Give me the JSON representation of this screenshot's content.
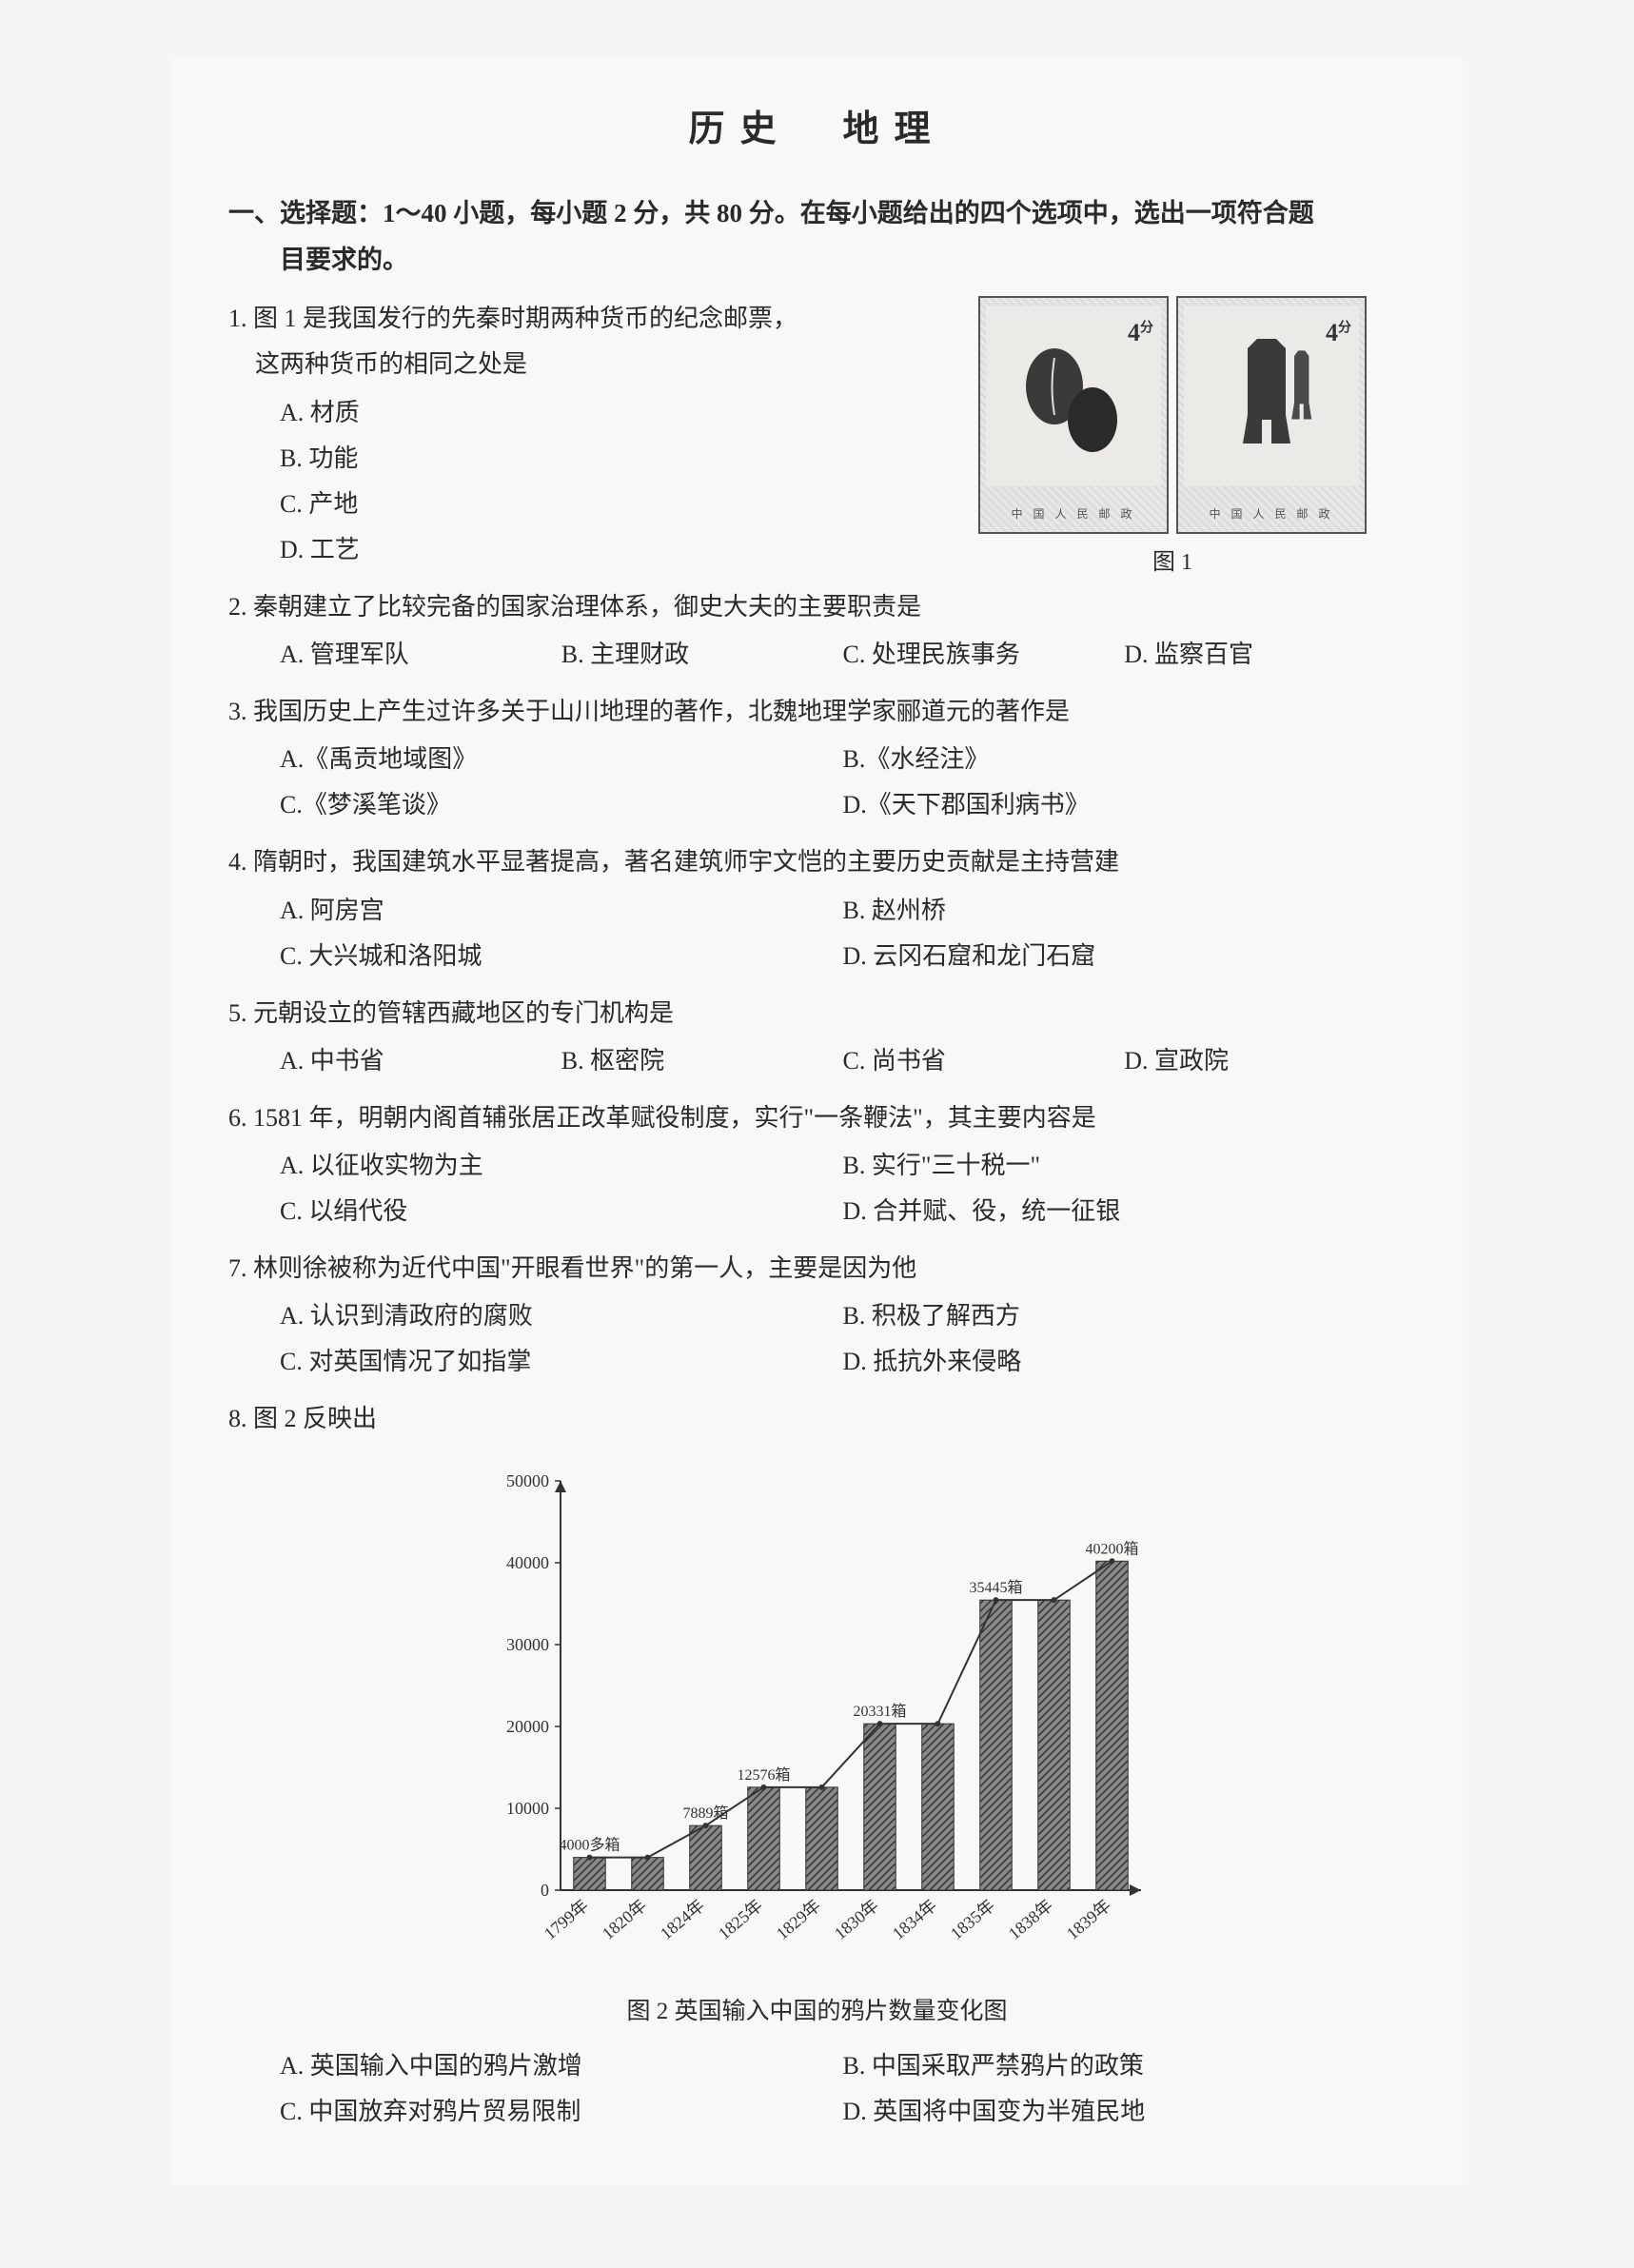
{
  "header": {
    "title": "历史　地理"
  },
  "section": {
    "instructions": "一、选择题：1～40 小题，每小题 2 分，共 80 分。在每小题给出的四个选项中，选出一项符合题",
    "instructions_cont": "目要求的。"
  },
  "figure1": {
    "label": "图 1",
    "stamp_value": "4",
    "stamp_unit": "分",
    "stamp_issuer": "中 国 人 民 邮 政"
  },
  "questions": [
    {
      "num": "1.",
      "stem_lines": [
        "图 1 是我国发行的先秦时期两种货币的纪念邮票，",
        "这两种货币的相同之处是"
      ],
      "layout": "col",
      "options": [
        "A. 材质",
        "B. 功能",
        "C. 产地",
        "D. 工艺"
      ]
    },
    {
      "num": "2.",
      "stem_lines": [
        "秦朝建立了比较完备的国家治理体系，御史大夫的主要职责是"
      ],
      "layout": "row4",
      "options": [
        "A. 管理军队",
        "B. 主理财政",
        "C. 处理民族事务",
        "D. 监察百官"
      ]
    },
    {
      "num": "3.",
      "stem_lines": [
        "我国历史上产生过许多关于山川地理的著作，北魏地理学家郦道元的著作是"
      ],
      "layout": "row2",
      "options": [
        "A.《禹贡地域图》",
        "B.《水经注》",
        "C.《梦溪笔谈》",
        "D.《天下郡国利病书》"
      ]
    },
    {
      "num": "4.",
      "stem_lines": [
        "隋朝时，我国建筑水平显著提高，著名建筑师宇文恺的主要历史贡献是主持营建"
      ],
      "layout": "row2",
      "options": [
        "A. 阿房宫",
        "B. 赵州桥",
        "C. 大兴城和洛阳城",
        "D. 云冈石窟和龙门石窟"
      ]
    },
    {
      "num": "5.",
      "stem_lines": [
        "元朝设立的管辖西藏地区的专门机构是"
      ],
      "layout": "row4",
      "options": [
        "A. 中书省",
        "B. 枢密院",
        "C. 尚书省",
        "D. 宣政院"
      ]
    },
    {
      "num": "6.",
      "stem_lines": [
        "1581 年，明朝内阁首辅张居正改革赋役制度，实行\"一条鞭法\"，其主要内容是"
      ],
      "layout": "row2",
      "options": [
        "A. 以征收实物为主",
        "B. 实行\"三十税一\"",
        "C. 以绢代役",
        "D. 合并赋、役，统一征银"
      ]
    },
    {
      "num": "7.",
      "stem_lines": [
        "林则徐被称为近代中国\"开眼看世界\"的第一人，主要是因为他"
      ],
      "layout": "row2",
      "options": [
        "A. 认识到清政府的腐败",
        "B. 积极了解西方",
        "C. 对英国情况了如指掌",
        "D. 抵抗外来侵略"
      ]
    },
    {
      "num": "8.",
      "stem_lines": [
        "图 2 反映出"
      ],
      "layout": "row2",
      "options": [
        "A. 英国输入中国的鸦片激增",
        "B. 中国采取严禁鸦片的政策",
        "C. 中国放弃对鸦片贸易限制",
        "D. 英国将中国变为半殖民地"
      ]
    }
  ],
  "chart": {
    "title": "图 2 英国输入中国的鸦片数量变化图",
    "type": "bar",
    "categories": [
      "1799年",
      "1820年",
      "1824年",
      "1825年",
      "1829年",
      "1830年",
      "1834年",
      "1835年",
      "1838年",
      "1839年"
    ],
    "values": [
      4000,
      4000,
      7889,
      12576,
      12576,
      20331,
      20331,
      35445,
      35445,
      40200
    ],
    "value_labels": [
      "4000多箱",
      "",
      "7889箱",
      "12576箱",
      "",
      "20331箱",
      "",
      "35445箱",
      "",
      "40200箱"
    ],
    "ylim": [
      0,
      50000
    ],
    "ytick_step": 10000,
    "yticks": [
      "0",
      "10000",
      "20000",
      "30000",
      "40000",
      "50000"
    ],
    "bar_color": "#6b6b6b",
    "bar_hatch": true,
    "background_color": "#f8f8f6",
    "axis_color": "#333333",
    "title_fontsize": 25,
    "label_fontsize": 18,
    "bar_width_ratio": 0.55,
    "has_trend_line": true,
    "trend_line_color": "#333333"
  }
}
